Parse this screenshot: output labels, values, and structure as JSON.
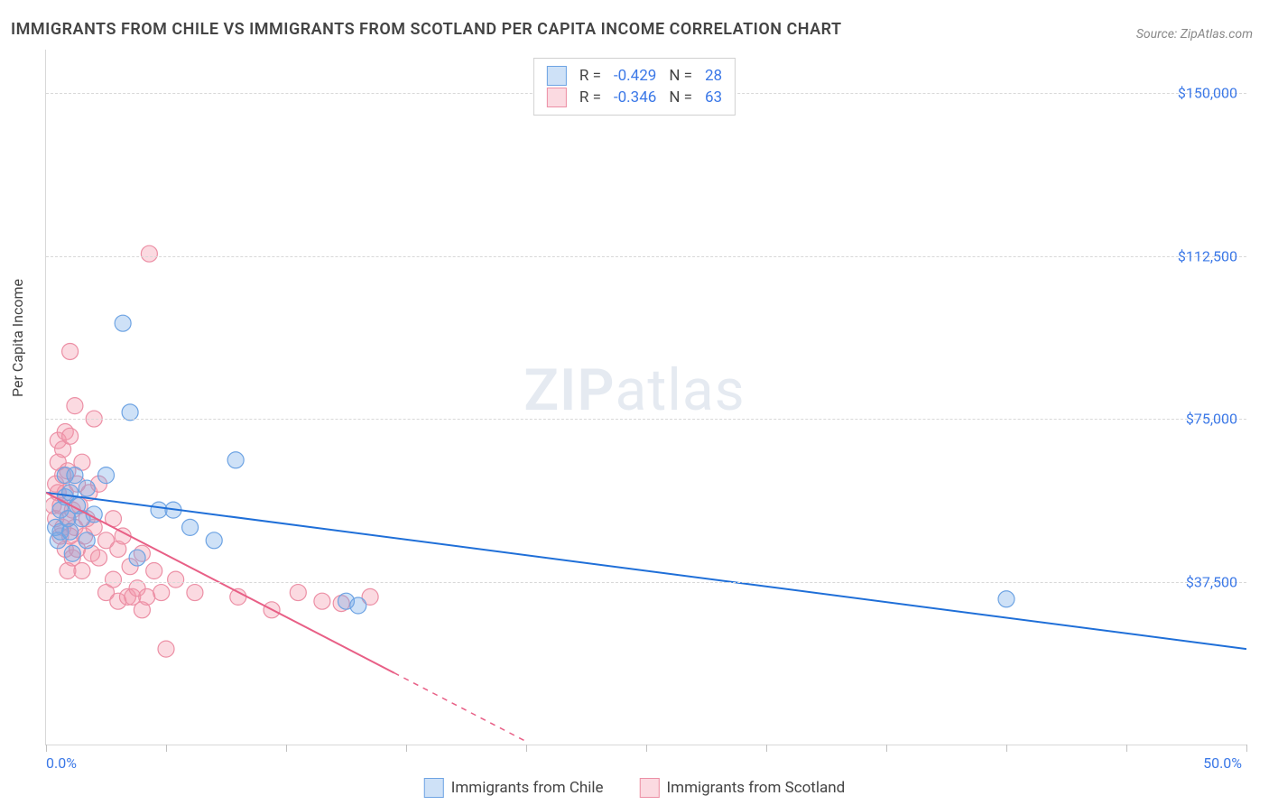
{
  "title": "IMMIGRANTS FROM CHILE VS IMMIGRANTS FROM SCOTLAND PER CAPITA INCOME CORRELATION CHART",
  "source": "Source: ZipAtlas.com",
  "ylabel": "Per Capita Income",
  "watermark_a": "ZIP",
  "watermark_b": "atlas",
  "chart": {
    "xlim": [
      0,
      50
    ],
    "ylim": [
      0,
      160000
    ],
    "x_ticks": [
      0,
      5,
      10,
      15,
      20,
      25,
      30,
      35,
      40,
      45,
      50
    ],
    "x_tick_labels": {
      "0": "0.0%",
      "50": "50.0%"
    },
    "y_gridlines": [
      37500,
      75000,
      112500,
      150000
    ],
    "y_tick_labels": {
      "37500": "$37,500",
      "75000": "$75,000",
      "112500": "$112,500",
      "150000": "$150,000"
    },
    "background_color": "#ffffff",
    "grid_color": "#d8d8d8"
  },
  "series": {
    "blue": {
      "label": "Immigrants from Chile",
      "R": "-0.429",
      "N": "28",
      "marker_fill": "rgba(114,168,231,0.35)",
      "marker_stroke": "#6da3e3",
      "marker_r": 9,
      "trend_color": "#1f6fd8",
      "trend_width": 2,
      "trend": {
        "x1": 0,
        "y1": 58000,
        "x2": 50,
        "y2": 22000
      },
      "points": [
        [
          0.4,
          50000
        ],
        [
          0.5,
          47000
        ],
        [
          0.6,
          54000
        ],
        [
          0.6,
          49000
        ],
        [
          0.8,
          62000
        ],
        [
          0.8,
          57000
        ],
        [
          0.9,
          52000
        ],
        [
          1.0,
          49000
        ],
        [
          1.0,
          58000
        ],
        [
          1.1,
          44000
        ],
        [
          1.2,
          62000
        ],
        [
          1.3,
          55000
        ],
        [
          1.5,
          52000
        ],
        [
          1.7,
          59000
        ],
        [
          1.7,
          47000
        ],
        [
          2.0,
          53000
        ],
        [
          2.5,
          62000
        ],
        [
          3.2,
          97000
        ],
        [
          3.5,
          76500
        ],
        [
          3.8,
          43000
        ],
        [
          4.7,
          54000
        ],
        [
          5.3,
          54000
        ],
        [
          6.0,
          50000
        ],
        [
          7.0,
          47000
        ],
        [
          7.9,
          65500
        ],
        [
          12.5,
          33000
        ],
        [
          13.0,
          32000
        ],
        [
          40.0,
          33500
        ]
      ]
    },
    "pink": {
      "label": "Immigrants from Scotland",
      "R": "-0.346",
      "N": "63",
      "marker_fill": "rgba(244,150,170,0.35)",
      "marker_stroke": "#ec8fa5",
      "marker_r": 9,
      "trend_color": "#e85f86",
      "trend_width": 2,
      "trend_solid": {
        "x1": 0,
        "y1": 58000,
        "x2": 14.5,
        "y2": 16500
      },
      "trend_dash": {
        "x1": 14.5,
        "y1": 16500,
        "x2": 20,
        "y2": 700
      },
      "points": [
        [
          0.3,
          55000
        ],
        [
          0.4,
          60000
        ],
        [
          0.4,
          52000
        ],
        [
          0.5,
          65000
        ],
        [
          0.5,
          58000
        ],
        [
          0.5,
          70000
        ],
        [
          0.6,
          48000
        ],
        [
          0.6,
          55000
        ],
        [
          0.7,
          62000
        ],
        [
          0.7,
          50000
        ],
        [
          0.7,
          68000
        ],
        [
          0.8,
          45000
        ],
        [
          0.8,
          58000
        ],
        [
          0.8,
          72000
        ],
        [
          0.9,
          40000
        ],
        [
          0.9,
          52000
        ],
        [
          0.9,
          63000
        ],
        [
          1.0,
          48000
        ],
        [
          1.0,
          71000
        ],
        [
          1.0,
          90500
        ],
        [
          1.1,
          43000
        ],
        [
          1.1,
          54000
        ],
        [
          1.2,
          78000
        ],
        [
          1.2,
          50000
        ],
        [
          1.3,
          60000
        ],
        [
          1.3,
          45000
        ],
        [
          1.4,
          55000
        ],
        [
          1.5,
          40000
        ],
        [
          1.5,
          65000
        ],
        [
          1.6,
          48000
        ],
        [
          1.7,
          52000
        ],
        [
          1.8,
          58000
        ],
        [
          1.9,
          44000
        ],
        [
          2.0,
          50000
        ],
        [
          2.0,
          75000
        ],
        [
          2.2,
          43000
        ],
        [
          2.2,
          60000
        ],
        [
          2.5,
          47000
        ],
        [
          2.5,
          35000
        ],
        [
          2.8,
          52000
        ],
        [
          2.8,
          38000
        ],
        [
          3.0,
          33000
        ],
        [
          3.0,
          45000
        ],
        [
          3.2,
          48000
        ],
        [
          3.4,
          34000
        ],
        [
          3.5,
          41000
        ],
        [
          3.6,
          34000
        ],
        [
          3.8,
          36000
        ],
        [
          4.0,
          31000
        ],
        [
          4.0,
          44000
        ],
        [
          4.3,
          113000
        ],
        [
          4.2,
          34000
        ],
        [
          4.5,
          40000
        ],
        [
          4.8,
          35000
        ],
        [
          5.0,
          22000
        ],
        [
          5.4,
          38000
        ],
        [
          6.2,
          35000
        ],
        [
          8.0,
          34000
        ],
        [
          9.4,
          31000
        ],
        [
          10.5,
          35000
        ],
        [
          11.5,
          33000
        ],
        [
          12.3,
          32500
        ],
        [
          13.5,
          34000
        ]
      ]
    }
  },
  "legend_r_label": "R =",
  "legend_n_label": "N ="
}
